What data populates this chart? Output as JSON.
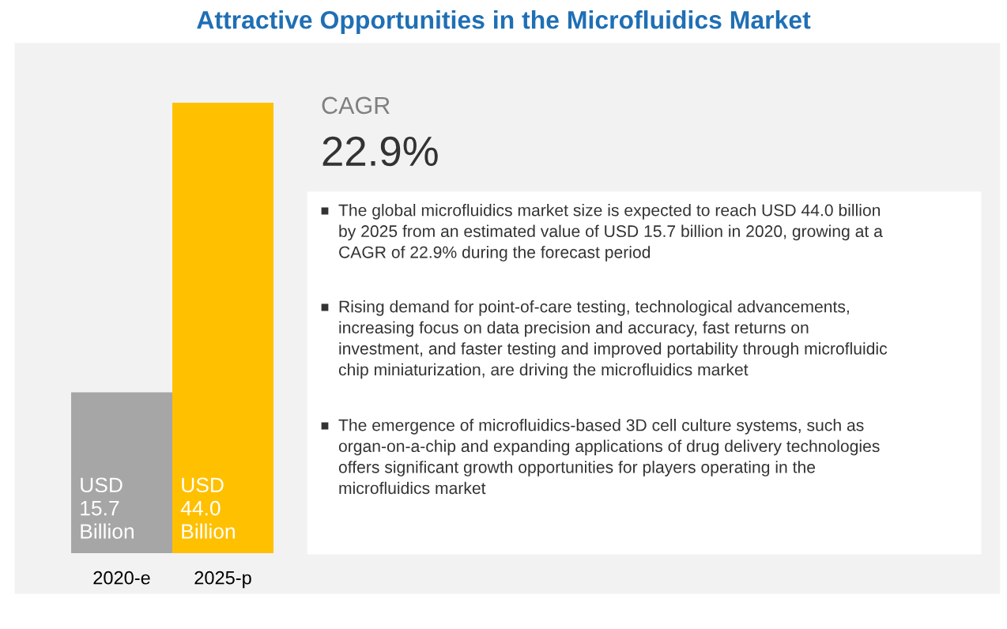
{
  "chart_data": {
    "type": "bar",
    "title": "Attractive Opportunities in the Microfluidics Market",
    "categories": [
      "2020-e",
      "2025-p"
    ],
    "values": [
      15.7,
      44.0
    ],
    "colors": [
      "#a6a6a6",
      "#ffc000"
    ],
    "value_labels": [
      "USD\n15.7\nBillion",
      "USD\n44.0\nBillion"
    ],
    "annotations": [
      "CAGR",
      "22.9%",
      "The global microfluidics market size is expected to reach USD 44.0 billion\nby 2025 from an estimated value of USD 15.7 billion in 2020, growing at a\nCAGR of 22.9% during the forecast period",
      "Rising demand for point-of-care testing, technological advancements,\nincreasing focus on data precision and accuracy, fast returns on\ninvestment, and faster testing and improved portability through microfluidic\nchip miniaturization, are driving the microfluidics market",
      "The emergence of microfluidics-based 3D cell culture systems, such as\norgan-on-a-chip and expanding applications of drug delivery technologies\noffers significant growth opportunities for players operating in the\nmicrofluidics market"
    ]
  }
}
